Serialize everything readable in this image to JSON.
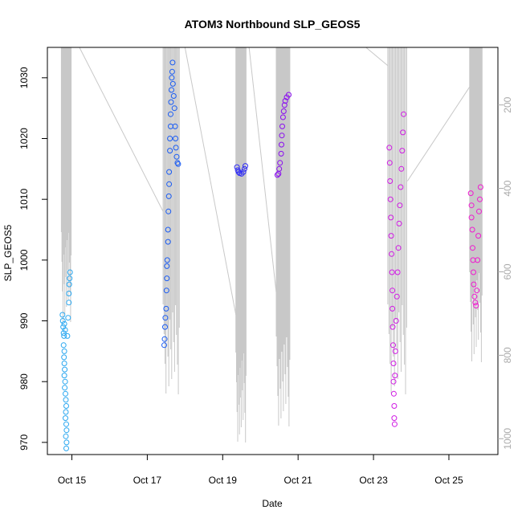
{
  "chart_data": {
    "type": "scatter",
    "title": "ATOM3 Northbound SLP_GEOS5",
    "xlabel": "Date",
    "ylabel": "SLP_GEOS5",
    "x_ticks": [
      "Oct 15",
      "Oct 17",
      "Oct 19",
      "Oct 21",
      "Oct 23",
      "Oct 25"
    ],
    "x_tick_days": [
      15,
      17,
      19,
      21,
      23,
      25
    ],
    "xlim_days": [
      14.35,
      26.3
    ],
    "ylim": [
      968,
      1035
    ],
    "y_ticks": [
      970,
      980,
      990,
      1000,
      1010,
      1020,
      1030
    ],
    "y2_ticks": [
      200,
      400,
      600,
      800,
      1000
    ],
    "y2lim": [
      1038,
      62
    ],
    "grid": false,
    "series": [
      {
        "color": "#2aa7f0",
        "points": [
          [
            14.75,
            991
          ],
          [
            14.76,
            990
          ],
          [
            14.77,
            989
          ],
          [
            14.78,
            988
          ],
          [
            14.79,
            987.5
          ],
          [
            14.78,
            986
          ],
          [
            14.8,
            985
          ],
          [
            14.79,
            984
          ],
          [
            14.8,
            983
          ],
          [
            14.81,
            982
          ],
          [
            14.8,
            981
          ],
          [
            14.82,
            980
          ],
          [
            14.81,
            979
          ],
          [
            14.83,
            978
          ],
          [
            14.84,
            977
          ],
          [
            14.85,
            976
          ],
          [
            14.84,
            975
          ],
          [
            14.83,
            974
          ],
          [
            14.85,
            973
          ],
          [
            14.86,
            972
          ],
          [
            14.84,
            971
          ],
          [
            14.86,
            970
          ],
          [
            14.85,
            969
          ],
          [
            14.88,
            987.5
          ],
          [
            14.9,
            990.5
          ],
          [
            14.92,
            993
          ],
          [
            14.92,
            994.5
          ],
          [
            14.93,
            996
          ],
          [
            14.94,
            997
          ],
          [
            14.95,
            998
          ],
          [
            14.8,
            989.5
          ],
          [
            14.82,
            988.5
          ]
        ]
      },
      {
        "color": "#1a5cf4",
        "points": [
          [
            17.45,
            986
          ],
          [
            17.46,
            987
          ],
          [
            17.47,
            989
          ],
          [
            17.48,
            990.5
          ],
          [
            17.5,
            992
          ],
          [
            17.51,
            995
          ],
          [
            17.52,
            997
          ],
          [
            17.52,
            999
          ],
          [
            17.53,
            1000
          ],
          [
            17.55,
            1003
          ],
          [
            17.55,
            1005
          ],
          [
            17.56,
            1008
          ],
          [
            17.57,
            1010.5
          ],
          [
            17.58,
            1012.5
          ],
          [
            17.58,
            1014.5
          ],
          [
            17.6,
            1018
          ],
          [
            17.6,
            1020
          ],
          [
            17.62,
            1022
          ],
          [
            17.62,
            1024
          ],
          [
            17.63,
            1026
          ],
          [
            17.64,
            1028
          ],
          [
            17.65,
            1030
          ],
          [
            17.66,
            1031
          ],
          [
            17.67,
            1032.5
          ],
          [
            17.68,
            1029
          ],
          [
            17.7,
            1027
          ],
          [
            17.72,
            1025
          ],
          [
            17.74,
            1022
          ],
          [
            17.75,
            1020
          ],
          [
            17.76,
            1018.5
          ],
          [
            17.78,
            1017
          ],
          [
            17.8,
            1016
          ],
          [
            17.82,
            1015.8
          ]
        ]
      },
      {
        "color": "#2f2cf6",
        "points": [
          [
            19.38,
            1015.3
          ],
          [
            19.4,
            1014.8
          ],
          [
            19.42,
            1014.5
          ],
          [
            19.45,
            1014.3
          ],
          [
            19.5,
            1014.2
          ],
          [
            19.55,
            1014.5
          ],
          [
            19.58,
            1015
          ],
          [
            19.6,
            1015.5
          ]
        ]
      },
      {
        "color": "#8a0cf0",
        "points": [
          [
            20.45,
            1014
          ],
          [
            20.48,
            1014.2
          ],
          [
            20.5,
            1015
          ],
          [
            20.52,
            1016
          ],
          [
            20.55,
            1017.5
          ],
          [
            20.56,
            1019
          ],
          [
            20.57,
            1020.5
          ],
          [
            20.58,
            1022
          ],
          [
            20.6,
            1023.5
          ],
          [
            20.62,
            1024.5
          ],
          [
            20.64,
            1025.5
          ],
          [
            20.66,
            1026.2
          ],
          [
            20.7,
            1026.8
          ],
          [
            20.75,
            1027.2
          ]
        ]
      },
      {
        "color": "#d01ae4",
        "points": [
          [
            23.42,
            1018.5
          ],
          [
            23.43,
            1016
          ],
          [
            23.44,
            1013
          ],
          [
            23.45,
            1010
          ],
          [
            23.46,
            1007
          ],
          [
            23.47,
            1004
          ],
          [
            23.48,
            1001
          ],
          [
            23.49,
            998
          ],
          [
            23.5,
            995
          ],
          [
            23.5,
            992
          ],
          [
            23.51,
            989
          ],
          [
            23.52,
            986
          ],
          [
            23.53,
            983
          ],
          [
            23.53,
            980
          ],
          [
            23.54,
            978
          ],
          [
            23.55,
            976
          ],
          [
            23.55,
            974
          ],
          [
            23.56,
            973
          ],
          [
            23.57,
            981
          ],
          [
            23.58,
            985
          ],
          [
            23.6,
            990
          ],
          [
            23.62,
            994
          ],
          [
            23.64,
            998
          ],
          [
            23.66,
            1002
          ],
          [
            23.68,
            1006
          ],
          [
            23.7,
            1009
          ],
          [
            23.72,
            1012
          ],
          [
            23.74,
            1015
          ],
          [
            23.76,
            1018
          ],
          [
            23.78,
            1021
          ],
          [
            23.8,
            1024
          ]
        ]
      },
      {
        "color": "#f01ad0",
        "points": [
          [
            25.58,
            1011
          ],
          [
            25.6,
            1009
          ],
          [
            25.6,
            1007
          ],
          [
            25.62,
            1005
          ],
          [
            25.63,
            1002
          ],
          [
            25.64,
            1000
          ],
          [
            25.65,
            998
          ],
          [
            25.66,
            996
          ],
          [
            25.68,
            994
          ],
          [
            25.7,
            993
          ],
          [
            25.72,
            992.5
          ],
          [
            25.74,
            995
          ],
          [
            25.76,
            1000
          ],
          [
            25.78,
            1004
          ],
          [
            25.8,
            1008
          ],
          [
            25.82,
            1010
          ],
          [
            25.84,
            1012
          ]
        ]
      }
    ]
  }
}
